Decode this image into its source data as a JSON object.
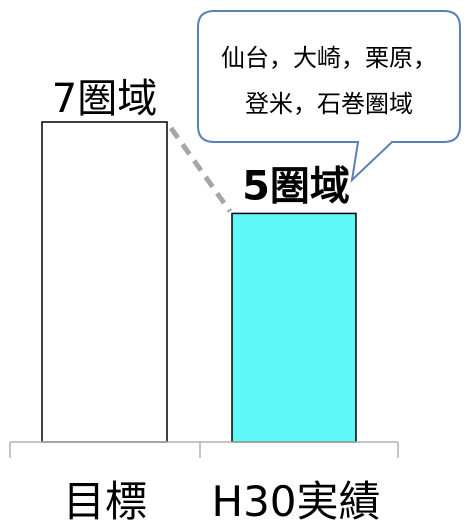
{
  "chart_data": {
    "type": "bar",
    "categories": [
      "目標",
      "H30実績"
    ],
    "values": [
      7,
      5
    ],
    "data_labels": [
      "7圏域",
      "5圏域"
    ],
    "ylim": [
      0,
      7
    ],
    "grid": false,
    "legend": "none",
    "colors": {
      "target_fill": "#ffffff",
      "actual_fill": "#5ff7f7",
      "bar_stroke": "#000000",
      "axis": "#b0b0b0",
      "connector": "#a6a6a6",
      "callout_stroke": "#5b7fb8"
    },
    "annotation": {
      "lines": [
        "仙台，大崎，栗原，",
        "登米，石巻圏域"
      ]
    }
  }
}
